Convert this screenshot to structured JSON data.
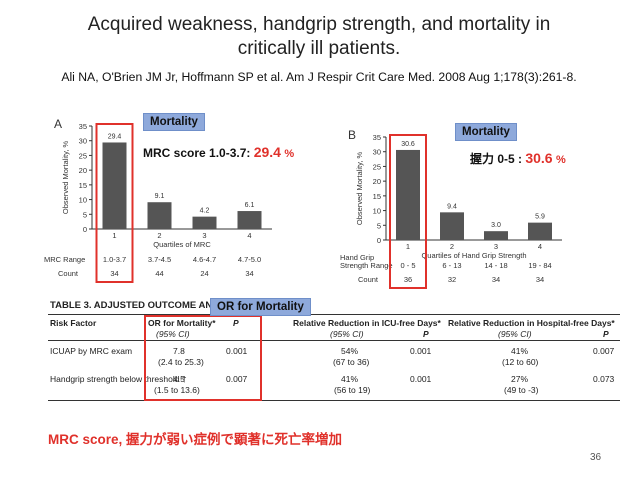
{
  "header": {
    "title_line1": "Acquired weakness, handgrip strength, and mortality in",
    "title_line2": "critically ill patients.",
    "citation": "Ali NA, O'Brien JM Jr, Hoffmann SP et al. Am J Respir Crit Care Med. 2008 Aug 1;178(3):261-8."
  },
  "labels": {
    "mortality_tag_a": "Mortality",
    "mortality_tag_b": "Mortality",
    "or_tag": "OR for Mortality",
    "callout_a_text": "MRC score 1.0-3.7: ",
    "callout_a_value": "29.4",
    "callout_a_unit": "%",
    "callout_b_text": "握力 0-5 : ",
    "callout_b_value": "30.6",
    "callout_b_unit": "%",
    "bottom_note": "MRC score, 握力が弱い症例で顕著に死亡率増加",
    "page_number": "36"
  },
  "colors": {
    "bar": "#555555",
    "highlight": "#e0312b",
    "tag_bg": "#8ea9db"
  },
  "chart_data": [
    {
      "type": "bar",
      "panel_label": "A",
      "ylabel": "Observed Mortality, %",
      "xlabel": "Quartiles of MRC",
      "ylim": [
        0,
        35
      ],
      "yticks": [
        0,
        5,
        10,
        15,
        20,
        25,
        30,
        35
      ],
      "categories": [
        "1",
        "2",
        "3",
        "4"
      ],
      "values": [
        29.4,
        9.1,
        4.2,
        6.1
      ],
      "value_labels": [
        "29.4",
        "9.1",
        "4.2",
        "6.1"
      ],
      "range_row_label": "MRC Range",
      "range_row": [
        "1.0-3.7",
        "3.7-4.5",
        "4.6-4.7",
        "4.7-5.0"
      ],
      "count_row_label": "Count",
      "count_row": [
        "34",
        "44",
        "24",
        "34"
      ]
    },
    {
      "type": "bar",
      "panel_label": "B",
      "ylabel": "Observed Mortality, %",
      "xlabel": "Quartiles of Hand Grip Strength",
      "ylim": [
        0,
        35
      ],
      "yticks": [
        0,
        5,
        10,
        15,
        20,
        25,
        30,
        35
      ],
      "categories": [
        "1",
        "2",
        "3",
        "4"
      ],
      "values": [
        30.6,
        9.4,
        3.0,
        5.9
      ],
      "value_labels": [
        "30.6",
        "9.4",
        "3.0",
        "5.9"
      ],
      "range_row_label": "Hand Grip Strength Range",
      "range_row_label_line1": "Hand Grip",
      "range_row_label_line2": "Strength Range",
      "range_row": [
        "0 - 5",
        "6 - 13",
        "14 - 18",
        "19 - 84"
      ],
      "count_row_label": "Count",
      "count_row": [
        "36",
        "32",
        "34",
        "34"
      ]
    }
  ],
  "table": {
    "title": "TABLE 3. ADJUSTED OUTCOME ANALYSIS",
    "title_suffix": "for Mortality",
    "col_risk": "Risk Factor",
    "col_or": "OR for Mortality*",
    "col_ci": "(95% CI)",
    "col_p": "P",
    "col_icu": "Relative Reduction in ICU-free Days*",
    "col_hosp": "Relative Reduction in Hospital-free Days*",
    "rows": [
      {
        "factor": "ICUAP by MRC exam",
        "or": "7.8",
        "or_ci": "(2.4 to 25.3)",
        "p": "0.001",
        "icu": "54%",
        "icu_ci": "(67 to 36)",
        "icu_p": "0.001",
        "hosp": "41%",
        "hosp_ci": "(12 to 60)",
        "hosp_p": "0.007"
      },
      {
        "factor": "Handgrip strength below threshold †",
        "or": "4.5",
        "or_ci": "(1.5 to 13.6)",
        "p": "0.007",
        "icu": "41%",
        "icu_ci": "(56 to 19)",
        "icu_p": "0.001",
        "hosp": "27%",
        "hosp_ci": "(49 to -3)",
        "hosp_p": "0.073"
      }
    ]
  }
}
